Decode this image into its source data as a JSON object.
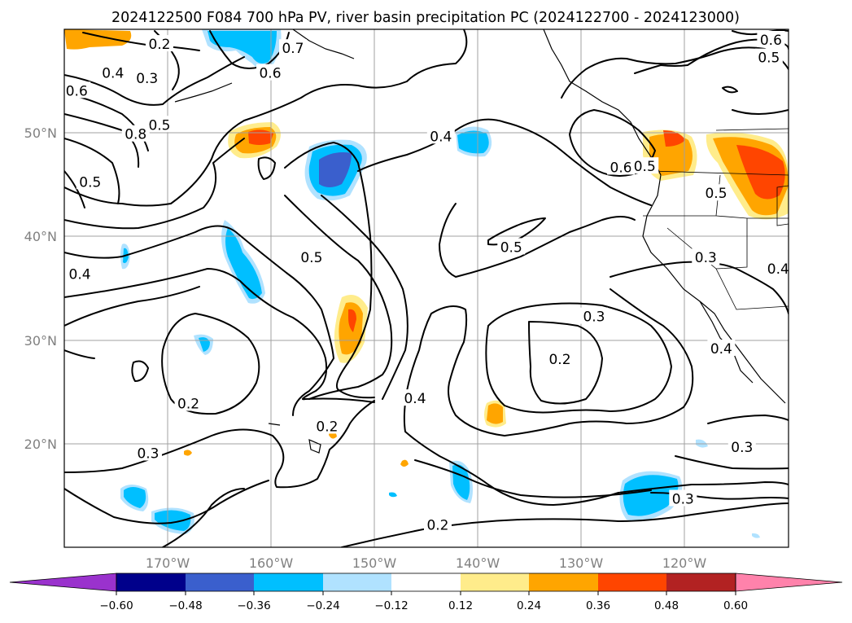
{
  "title": "2024122500 F084 700 hPa PV, river basin precipitation PC (2024122700 - 2024123000)",
  "map": {
    "lat_ticks": [
      "50°N",
      "40°N",
      "30°N",
      "20°N"
    ],
    "lon_ticks": [
      "170°W",
      "160°W",
      "150°W",
      "140°W",
      "130°W",
      "120°W"
    ],
    "extent": {
      "lon_min": -180,
      "lon_max": -110,
      "lat_min": 10,
      "lat_max": 60
    },
    "contour_labels": [
      {
        "text": "0.2",
        "lon": -170.8,
        "lat": 58.5
      },
      {
        "text": "0.4",
        "lon": -175.3,
        "lat": 55.7
      },
      {
        "text": "0.3",
        "lon": -172.0,
        "lat": 55.2
      },
      {
        "text": "0.6",
        "lon": -178.8,
        "lat": 54.0
      },
      {
        "text": "0.5",
        "lon": -170.8,
        "lat": 50.7
      },
      {
        "text": "0.8",
        "lon": -173.1,
        "lat": 49.8
      },
      {
        "text": "0.7",
        "lon": -157.9,
        "lat": 58.1
      },
      {
        "text": "0.6",
        "lon": -160.1,
        "lat": 55.7
      },
      {
        "text": "0.5",
        "lon": -177.5,
        "lat": 45.2
      },
      {
        "text": "0.4",
        "lon": -178.5,
        "lat": 36.3
      },
      {
        "text": "0.5",
        "lon": -156.1,
        "lat": 37.9
      },
      {
        "text": "0.4",
        "lon": -143.6,
        "lat": 49.6
      },
      {
        "text": "0.5",
        "lon": -136.8,
        "lat": 38.9
      },
      {
        "text": "0.6",
        "lon": -126.2,
        "lat": 46.6
      },
      {
        "text": "0.5",
        "lon": -123.9,
        "lat": 46.7
      },
      {
        "text": "0.6",
        "lon": -111.7,
        "lat": 58.9
      },
      {
        "text": "0.5",
        "lon": -111.9,
        "lat": 57.2
      },
      {
        "text": "0.5",
        "lon": -117.0,
        "lat": 44.1
      },
      {
        "text": "0.3",
        "lon": -118.0,
        "lat": 37.9
      },
      {
        "text": "0.4",
        "lon": -111.0,
        "lat": 36.8
      },
      {
        "text": "0.3",
        "lon": -128.8,
        "lat": 32.2
      },
      {
        "text": "0.4",
        "lon": -116.5,
        "lat": 29.1
      },
      {
        "text": "0.2",
        "lon": -132.1,
        "lat": 28.1
      },
      {
        "text": "0.4",
        "lon": -146.1,
        "lat": 24.3
      },
      {
        "text": "0.2",
        "lon": -168.0,
        "lat": 23.8
      },
      {
        "text": "0.2",
        "lon": -154.6,
        "lat": 21.6
      },
      {
        "text": "0.3",
        "lon": -171.9,
        "lat": 19.0
      },
      {
        "text": "0.3",
        "lon": -120.2,
        "lat": 14.6
      },
      {
        "text": "0.3",
        "lon": -114.5,
        "lat": 19.6
      },
      {
        "text": "0.2",
        "lon": -143.9,
        "lat": 12.1
      }
    ]
  },
  "colorbar": {
    "ticks": [
      "−0.60",
      "−0.48",
      "−0.36",
      "−0.24",
      "−0.12",
      "0.12",
      "0.24",
      "0.36",
      "0.48",
      "0.60"
    ],
    "colors": [
      "#9a32cd",
      "#00008b",
      "#3a5fcd",
      "#00bfff",
      "#b0e2ff",
      "#ffffff",
      "#ffec8b",
      "#ffa500",
      "#ff4500",
      "#b22222",
      "#ff82ab"
    ]
  }
}
